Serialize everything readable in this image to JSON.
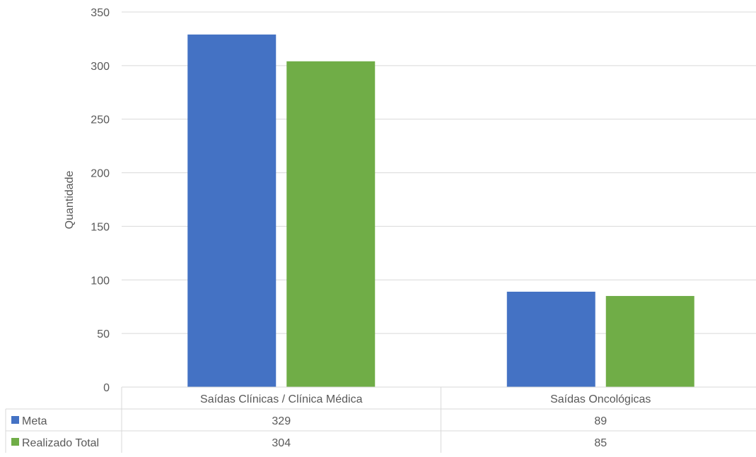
{
  "chart_data": {
    "type": "bar",
    "title": "",
    "xlabel": "",
    "ylabel": "Quantidade",
    "ylim": [
      0,
      350
    ],
    "yticks": [
      0,
      50,
      100,
      150,
      200,
      250,
      300,
      350
    ],
    "categories": [
      "Saídas Clínicas / Clínica Médica",
      "Saídas Oncológicas"
    ],
    "series": [
      {
        "name": "Meta",
        "values": [
          329,
          89
        ],
        "color": "#4472C4"
      },
      {
        "name": "Realizado Total",
        "values": [
          304,
          85
        ],
        "color": "#70AD47"
      }
    ],
    "grid": true,
    "legend": "data-table"
  }
}
